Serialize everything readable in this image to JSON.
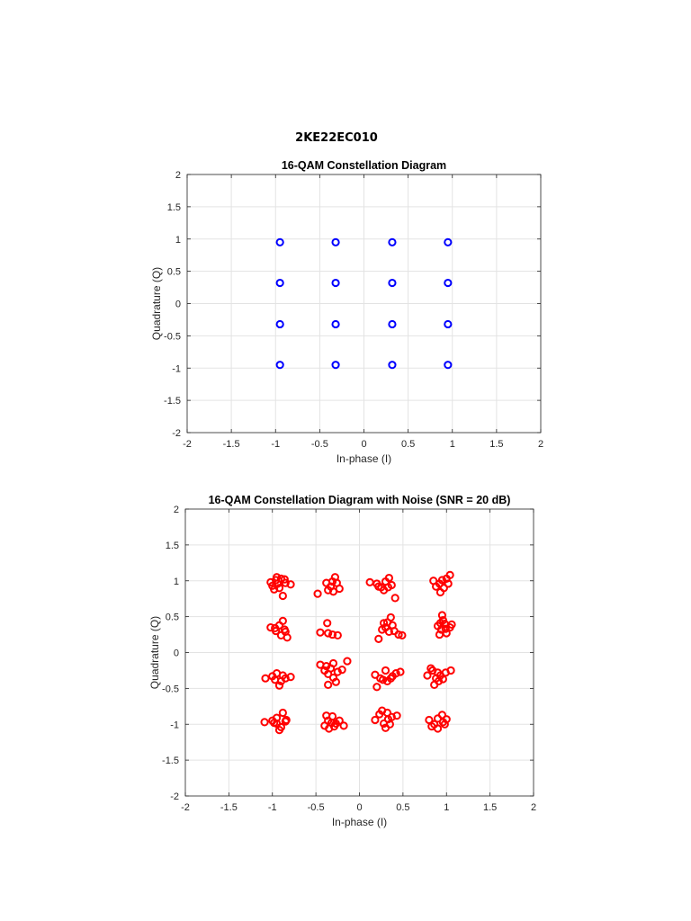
{
  "document": {
    "header": "2KE22EC010"
  },
  "chart_data": [
    {
      "type": "scatter",
      "title": "16-QAM Constellation Diagram",
      "xlabel": "In-phase (I)",
      "ylabel": "Quadrature (Q)",
      "xlim": [
        -2,
        2
      ],
      "ylim": [
        -2,
        2
      ],
      "xticks": [
        "-2",
        "-1.5",
        "-1",
        "-0.5",
        "0",
        "0.5",
        "1",
        "1.5",
        "2"
      ],
      "yticks": [
        "-2",
        "-1.5",
        "-1",
        "-0.5",
        "0",
        "0.5",
        "1",
        "1.5",
        "2"
      ],
      "grid": true,
      "marker": "circle",
      "color": "#0000ff",
      "points": [
        [
          -0.95,
          0.95
        ],
        [
          -0.32,
          0.95
        ],
        [
          0.32,
          0.95
        ],
        [
          0.95,
          0.95
        ],
        [
          -0.95,
          0.32
        ],
        [
          -0.32,
          0.32
        ],
        [
          0.32,
          0.32
        ],
        [
          0.95,
          0.32
        ],
        [
          -0.95,
          -0.32
        ],
        [
          -0.32,
          -0.32
        ],
        [
          0.32,
          -0.32
        ],
        [
          0.95,
          -0.32
        ],
        [
          -0.95,
          -0.95
        ],
        [
          -0.32,
          -0.95
        ],
        [
          0.32,
          -0.95
        ],
        [
          0.95,
          -0.95
        ]
      ]
    },
    {
      "type": "scatter",
      "title": "16-QAM Constellation Diagram with Noise (SNR = 20 dB)",
      "xlabel": "In-phase (I)",
      "ylabel": "Quadrature (Q)",
      "xlim": [
        -2,
        2
      ],
      "ylim": [
        -2,
        2
      ],
      "xticks": [
        "-2",
        "-1.5",
        "-1",
        "-0.5",
        "0",
        "0.5",
        "1",
        "1.5",
        "2"
      ],
      "yticks": [
        "-2",
        "-1.5",
        "-1",
        "-0.5",
        "0",
        "0.5",
        "1",
        "1.5",
        "2"
      ],
      "grid": true,
      "marker": "circle",
      "color": "#ff0000",
      "points": [
        [
          -1.02,
          0.98
        ],
        [
          -0.96,
          1.01
        ],
        [
          -0.9,
          1.03
        ],
        [
          -0.85,
          0.97
        ],
        [
          -0.79,
          0.95
        ],
        [
          -0.92,
          0.9
        ],
        [
          -0.98,
          0.88
        ],
        [
          -1.0,
          0.93
        ],
        [
          -0.88,
          0.79
        ],
        [
          -0.94,
          0.96
        ],
        [
          -0.86,
          1.02
        ],
        [
          -0.95,
          1.05
        ],
        [
          -0.48,
          0.82
        ],
        [
          -0.38,
          0.97
        ],
        [
          -0.33,
          0.92
        ],
        [
          -0.28,
          1.05
        ],
        [
          -0.26,
          0.97
        ],
        [
          -0.3,
          0.85
        ],
        [
          -0.23,
          0.89
        ],
        [
          -0.36,
          0.87
        ],
        [
          -0.31,
          0.99
        ],
        [
          0.12,
          0.98
        ],
        [
          0.2,
          0.96
        ],
        [
          0.25,
          0.91
        ],
        [
          0.3,
          0.99
        ],
        [
          0.34,
          1.04
        ],
        [
          0.37,
          0.94
        ],
        [
          0.41,
          0.76
        ],
        [
          0.28,
          0.87
        ],
        [
          0.22,
          0.92
        ],
        [
          0.33,
          0.91
        ],
        [
          0.85,
          1.0
        ],
        [
          0.92,
          0.96
        ],
        [
          0.97,
          0.9
        ],
        [
          1.0,
          1.03
        ],
        [
          1.04,
          1.08
        ],
        [
          0.93,
          0.84
        ],
        [
          0.88,
          0.92
        ],
        [
          0.95,
          1.01
        ],
        [
          1.02,
          0.96
        ],
        [
          -1.02,
          0.35
        ],
        [
          -0.96,
          0.3
        ],
        [
          -0.92,
          0.38
        ],
        [
          -0.88,
          0.44
        ],
        [
          -0.85,
          0.29
        ],
        [
          -0.9,
          0.24
        ],
        [
          -0.83,
          0.21
        ],
        [
          -0.97,
          0.34
        ],
        [
          -0.86,
          0.32
        ],
        [
          -0.45,
          0.28
        ],
        [
          -0.36,
          0.27
        ],
        [
          -0.31,
          0.25
        ],
        [
          -0.25,
          0.24
        ],
        [
          -0.37,
          0.41
        ],
        [
          0.22,
          0.19
        ],
        [
          0.26,
          0.32
        ],
        [
          0.3,
          0.35
        ],
        [
          0.36,
          0.49
        ],
        [
          0.32,
          0.42
        ],
        [
          0.4,
          0.3
        ],
        [
          0.45,
          0.25
        ],
        [
          0.49,
          0.24
        ],
        [
          0.28,
          0.41
        ],
        [
          0.38,
          0.38
        ],
        [
          0.34,
          0.29
        ],
        [
          0.9,
          0.37
        ],
        [
          0.94,
          0.32
        ],
        [
          0.98,
          0.4
        ],
        [
          1.04,
          0.35
        ],
        [
          0.95,
          0.52
        ],
        [
          0.92,
          0.25
        ],
        [
          1.0,
          0.27
        ],
        [
          0.96,
          0.45
        ],
        [
          1.06,
          0.39
        ],
        [
          0.99,
          0.33
        ],
        [
          0.93,
          0.41
        ],
        [
          -1.08,
          -0.36
        ],
        [
          -1.0,
          -0.33
        ],
        [
          -0.95,
          -0.29
        ],
        [
          -0.9,
          -0.4
        ],
        [
          -0.85,
          -0.36
        ],
        [
          -0.79,
          -0.34
        ],
        [
          -0.92,
          -0.46
        ],
        [
          -0.97,
          -0.38
        ],
        [
          -0.88,
          -0.32
        ],
        [
          -0.45,
          -0.17
        ],
        [
          -0.4,
          -0.25
        ],
        [
          -0.36,
          -0.3
        ],
        [
          -0.3,
          -0.35
        ],
        [
          -0.27,
          -0.41
        ],
        [
          -0.25,
          -0.27
        ],
        [
          -0.2,
          -0.24
        ],
        [
          -0.14,
          -0.12
        ],
        [
          -0.33,
          -0.22
        ],
        [
          -0.3,
          -0.15
        ],
        [
          -0.36,
          -0.45
        ],
        [
          -0.38,
          -0.19
        ],
        [
          0.18,
          -0.31
        ],
        [
          0.24,
          -0.36
        ],
        [
          0.3,
          -0.25
        ],
        [
          0.36,
          -0.36
        ],
        [
          0.42,
          -0.29
        ],
        [
          0.47,
          -0.27
        ],
        [
          0.2,
          -0.48
        ],
        [
          0.27,
          -0.38
        ],
        [
          0.32,
          -0.4
        ],
        [
          0.38,
          -0.33
        ],
        [
          0.78,
          -0.32
        ],
        [
          0.84,
          -0.25
        ],
        [
          0.88,
          -0.36
        ],
        [
          0.93,
          -0.32
        ],
        [
          0.99,
          -0.28
        ],
        [
          1.05,
          -0.25
        ],
        [
          0.86,
          -0.45
        ],
        [
          0.91,
          -0.4
        ],
        [
          0.96,
          -0.37
        ],
        [
          0.82,
          -0.22
        ],
        [
          0.9,
          -0.28
        ],
        [
          -1.09,
          -0.97
        ],
        [
          -1.0,
          -0.95
        ],
        [
          -0.95,
          -0.99
        ],
        [
          -0.9,
          -1.04
        ],
        [
          -0.85,
          -0.96
        ],
        [
          -0.88,
          -0.84
        ],
        [
          -0.95,
          -0.91
        ],
        [
          -0.92,
          -1.08
        ],
        [
          -0.84,
          -0.94
        ],
        [
          -0.98,
          -0.98
        ],
        [
          -0.4,
          -1.02
        ],
        [
          -0.36,
          -0.95
        ],
        [
          -0.31,
          -0.89
        ],
        [
          -0.27,
          -0.99
        ],
        [
          -0.23,
          -0.95
        ],
        [
          -0.18,
          -1.02
        ],
        [
          -0.38,
          -0.88
        ],
        [
          -0.32,
          -0.98
        ],
        [
          -0.35,
          -1.06
        ],
        [
          -0.29,
          -1.03
        ],
        [
          0.18,
          -0.94
        ],
        [
          0.23,
          -0.86
        ],
        [
          0.28,
          -0.99
        ],
        [
          0.33,
          -0.93
        ],
        [
          0.37,
          -0.9
        ],
        [
          0.43,
          -0.88
        ],
        [
          0.3,
          -1.05
        ],
        [
          0.26,
          -0.81
        ],
        [
          0.32,
          -0.84
        ],
        [
          0.35,
          -1.0
        ],
        [
          0.8,
          -0.94
        ],
        [
          0.86,
          -1.0
        ],
        [
          0.9,
          -0.92
        ],
        [
          0.95,
          -0.87
        ],
        [
          0.98,
          -1.0
        ],
        [
          1.0,
          -0.93
        ],
        [
          0.9,
          -1.06
        ],
        [
          0.83,
          -1.03
        ],
        [
          0.96,
          -0.97
        ]
      ]
    }
  ]
}
